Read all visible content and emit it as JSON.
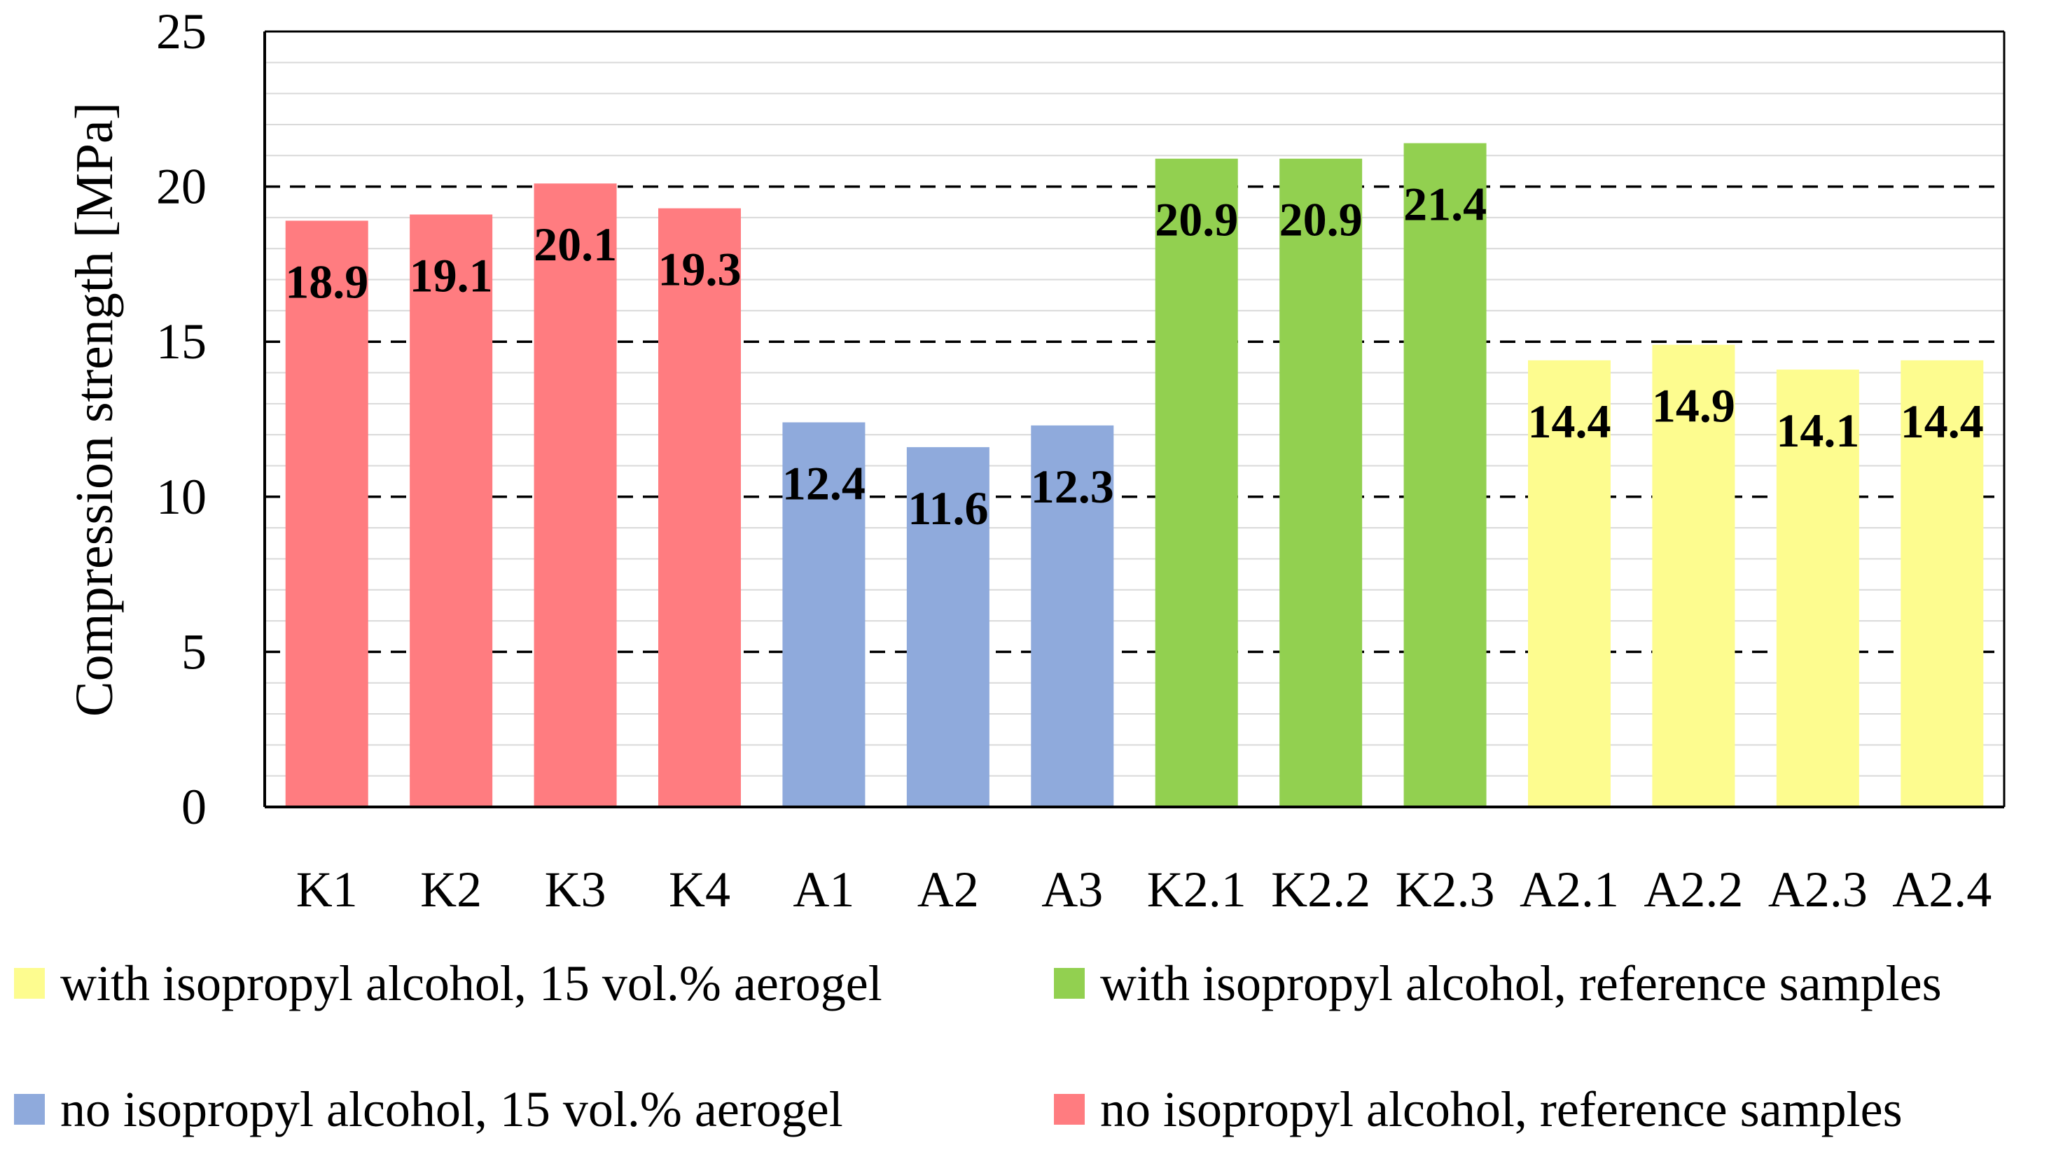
{
  "chart_data": {
    "type": "bar",
    "title": "",
    "xlabel": "",
    "ylabel": "Compression strength [MPa]",
    "ylim": [
      0,
      25
    ],
    "yticks": [
      0,
      5,
      10,
      15,
      20,
      25
    ],
    "major_grid": [
      5,
      10,
      15,
      20
    ],
    "minor_grid_step": 1,
    "categories": [
      "K1",
      "K2",
      "K3",
      "K4",
      "A1",
      "A2",
      "A3",
      "K2.1",
      "K2.2",
      "K2.3",
      "A2.1",
      "A2.2",
      "A2.3",
      "A2.4"
    ],
    "values": [
      18.9,
      19.1,
      20.1,
      19.3,
      12.4,
      11.6,
      12.3,
      20.9,
      20.9,
      21.4,
      14.4,
      14.9,
      14.1,
      14.4
    ],
    "data_labels": [
      "18.9",
      "19.1",
      "20.1",
      "19.3",
      "12.4",
      "11.6",
      "12.3",
      "20.9",
      "20.9",
      "21.4",
      "14.4",
      "14.9",
      "14.1",
      "14.4"
    ],
    "groups": [
      "ref_no_ipa",
      "ref_no_ipa",
      "ref_no_ipa",
      "ref_no_ipa",
      "aero_no_ipa",
      "aero_no_ipa",
      "aero_no_ipa",
      "ref_ipa",
      "ref_ipa",
      "ref_ipa",
      "aero_ipa",
      "aero_ipa",
      "aero_ipa",
      "aero_ipa"
    ],
    "series": [
      {
        "key": "aero_ipa",
        "name": "with isopropyl alcohol, 15 vol.% aerogel",
        "color": "#fdfc8f"
      },
      {
        "key": "ref_ipa",
        "name": "with isopropyl alcohol, reference samples",
        "color": "#92d050"
      },
      {
        "key": "aero_no_ipa",
        "name": "no isopropyl alcohol, 15 vol.% aerogel",
        "color": "#8faadc"
      },
      {
        "key": "ref_no_ipa",
        "name": "no isopropyl alcohol, reference samples",
        "color": "#ff7c80"
      }
    ],
    "legend_position": "bottom"
  }
}
